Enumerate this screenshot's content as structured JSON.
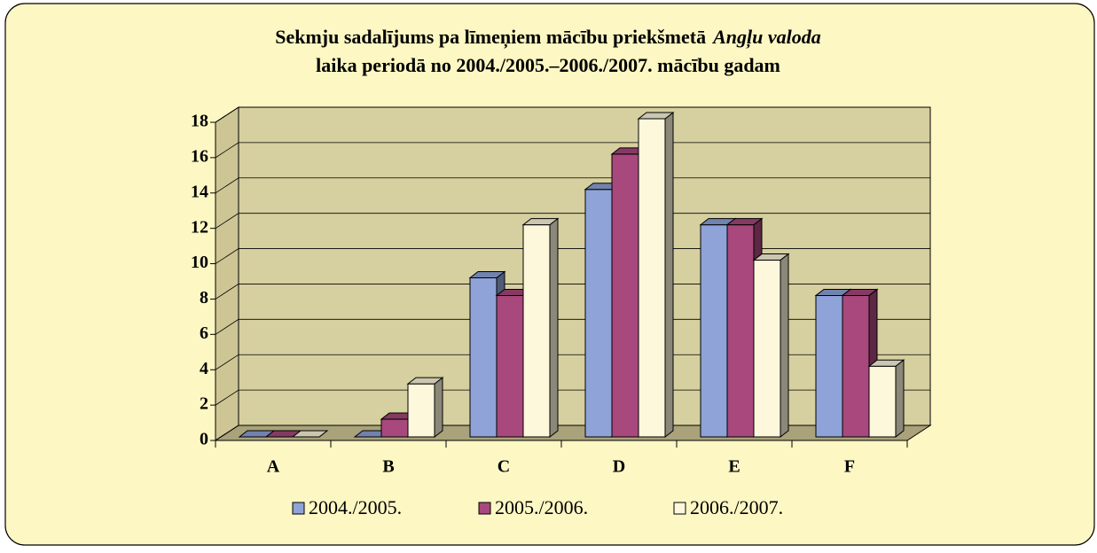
{
  "chart_data": {
    "type": "bar3d",
    "title_start": "Sekmju sadalījums pa līmeņiem mācību priekšmetā",
    "title_italic": "Angļu valoda",
    "title_line2": "laika periodā no 2004./2005.–2006./2007. mācību gadam",
    "categories": [
      "A",
      "B",
      "C",
      "D",
      "E",
      "F"
    ],
    "series": [
      {
        "name": "2004./2005.",
        "color": "#8fa3d9",
        "values": [
          0,
          0,
          9,
          14,
          12,
          8
        ]
      },
      {
        "name": "2005./2006.",
        "color": "#a8487c",
        "values": [
          0,
          1,
          8,
          16,
          12,
          8
        ]
      },
      {
        "name": "2006./2007.",
        "color": "#fdf7dc",
        "values": [
          0,
          3,
          12,
          18,
          10,
          4
        ]
      }
    ],
    "ylim": [
      0,
      18
    ],
    "yticks": [
      0,
      2,
      4,
      6,
      8,
      10,
      12,
      14,
      16,
      18
    ],
    "grid": true
  }
}
